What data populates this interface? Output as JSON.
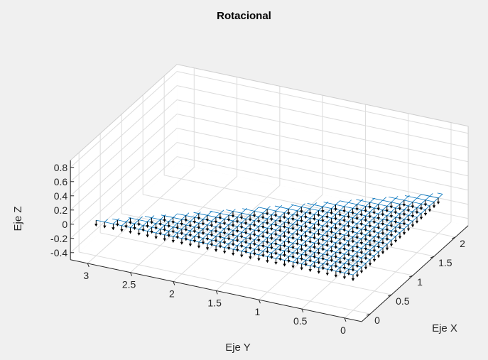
{
  "chart_data": {
    "type": "quiver3",
    "title": "Rotacional",
    "xlabel": "Eje X",
    "ylabel": "Eje Y",
    "zlabel": "Eje Z",
    "xlim": [
      -0.2,
      2.3
    ],
    "ylim": [
      -0.2,
      3.2
    ],
    "zlim": [
      -0.5,
      0.9
    ],
    "x_ticks": [
      "0",
      "0.5",
      "1",
      "1.5",
      "2"
    ],
    "x_tick_values": [
      0,
      0.5,
      1,
      1.5,
      2
    ],
    "y_ticks": [
      "0",
      "0.5",
      "1",
      "1.5",
      "2",
      "2.5",
      "3"
    ],
    "y_tick_values": [
      0,
      0.5,
      1,
      1.5,
      2,
      2.5,
      3
    ],
    "z_ticks": [
      "-0.4",
      "-0.2",
      "0",
      "0.2",
      "0.4",
      "0.6",
      "0.8"
    ],
    "z_tick_values": [
      -0.4,
      -0.2,
      0,
      0.2,
      0.4,
      0.6,
      0.8
    ],
    "grid": true,
    "surface": {
      "x_range": [
        0,
        2.1
      ],
      "y_range": [
        0,
        3.0
      ],
      "step": 0.1,
      "region": "y <= 3 - 1.4 * x",
      "z": 0
    },
    "vectors": {
      "x_range": [
        0,
        2.0
      ],
      "y_range": [
        0,
        3.0
      ],
      "step": 0.1,
      "region": "y <= 3 - 1.5 * x",
      "z": 0,
      "u": 0,
      "v": 0,
      "w": -0.08
    },
    "colors": {
      "mesh": "#0072bd",
      "arrow": "#000000",
      "background": "#f0f0f0",
      "axes": "#ffffff",
      "grid": "#dcdcdc"
    }
  }
}
